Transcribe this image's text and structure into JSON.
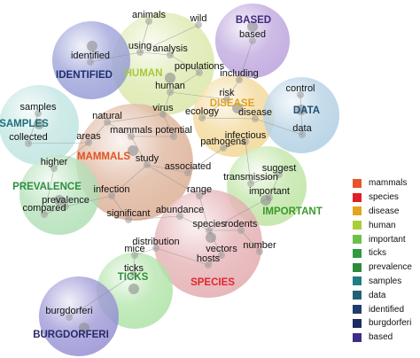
{
  "clusters": [
    {
      "id": "human",
      "label": "HUMAN",
      "color": "#a8c83a",
      "fill": "#d6e6a0"
    },
    {
      "id": "based",
      "label": "BASED",
      "color": "#3f2b7f",
      "fill": "#b59ad9"
    },
    {
      "id": "identified",
      "label": "IDENTIFIED",
      "color": "#1f2f6e",
      "fill": "#8d93d4"
    },
    {
      "id": "samples",
      "label": "SAMPLES",
      "color": "#1f6f7a",
      "fill": "#b7e2de"
    },
    {
      "id": "disease",
      "label": "DISEASE",
      "color": "#e0a21c",
      "fill": "#f1d48a"
    },
    {
      "id": "data",
      "label": "DATA",
      "color": "#1f4f75",
      "fill": "#a9cbe0"
    },
    {
      "id": "mammals",
      "label": "MAMMALS",
      "color": "#e05320",
      "fill": "#d9a88c"
    },
    {
      "id": "prevalence",
      "label": "PREVALENCE",
      "color": "#2e8f3f",
      "fill": "#a9dcae"
    },
    {
      "id": "important",
      "label": "IMPORTANT",
      "color": "#3a9a2a",
      "fill": "#b7e29a"
    },
    {
      "id": "species",
      "label": "SPECIES",
      "color": "#e2262e",
      "fill": "#e0a4a8"
    },
    {
      "id": "ticks",
      "label": "TICKS",
      "color": "#2e8f3a",
      "fill": "#a6e09e"
    },
    {
      "id": "burgdorferi",
      "label": "BURGDORFERI",
      "color": "#2a2a6a",
      "fill": "#8d86cf"
    }
  ],
  "words": [
    {
      "id": "animals",
      "text": "animals"
    },
    {
      "id": "wild",
      "text": "wild"
    },
    {
      "id": "using",
      "text": "using"
    },
    {
      "id": "analysis",
      "text": "analysis"
    },
    {
      "id": "populations",
      "text": "populations"
    },
    {
      "id": "including",
      "text": "including"
    },
    {
      "id": "based_w",
      "text": "based"
    },
    {
      "id": "identified_w",
      "text": "identified"
    },
    {
      "id": "human_w",
      "text": "human"
    },
    {
      "id": "risk",
      "text": "risk"
    },
    {
      "id": "virus",
      "text": "virus"
    },
    {
      "id": "ecology",
      "text": "ecology"
    },
    {
      "id": "disease_w",
      "text": "disease"
    },
    {
      "id": "control",
      "text": "control"
    },
    {
      "id": "data_w",
      "text": "data"
    },
    {
      "id": "samples_w",
      "text": "samples"
    },
    {
      "id": "natural",
      "text": "natural"
    },
    {
      "id": "mammals_w",
      "text": "mammals"
    },
    {
      "id": "potential",
      "text": "potential"
    },
    {
      "id": "infectious",
      "text": "infectious"
    },
    {
      "id": "pathogens",
      "text": "pathogens"
    },
    {
      "id": "collected",
      "text": "collected"
    },
    {
      "id": "areas",
      "text": "areas"
    },
    {
      "id": "higher",
      "text": "higher"
    },
    {
      "id": "study",
      "text": "study"
    },
    {
      "id": "associated",
      "text": "associated"
    },
    {
      "id": "suggest",
      "text": "suggest"
    },
    {
      "id": "transmission",
      "text": "transmission"
    },
    {
      "id": "important_w",
      "text": "important"
    },
    {
      "id": "infection",
      "text": "infection"
    },
    {
      "id": "range",
      "text": "range"
    },
    {
      "id": "prevalence_w",
      "text": "prevalence"
    },
    {
      "id": "compared",
      "text": "compared"
    },
    {
      "id": "significant",
      "text": "significant"
    },
    {
      "id": "abundance",
      "text": "abundance"
    },
    {
      "id": "species_w",
      "text": "species"
    },
    {
      "id": "rodents",
      "text": "rodents"
    },
    {
      "id": "distribution",
      "text": "distribution"
    },
    {
      "id": "number",
      "text": "number"
    },
    {
      "id": "mice",
      "text": "mice"
    },
    {
      "id": "vectors",
      "text": "vectors"
    },
    {
      "id": "hosts",
      "text": "hosts"
    },
    {
      "id": "ticks_w",
      "text": "ticks"
    },
    {
      "id": "burgdorferi_w",
      "text": "burgdorferi"
    }
  ],
  "legend": [
    {
      "label": "mammals",
      "color": "#e8542a"
    },
    {
      "label": "species",
      "color": "#e11f26"
    },
    {
      "label": "disease",
      "color": "#e2a51f"
    },
    {
      "label": "human",
      "color": "#aacd3a"
    },
    {
      "label": "important",
      "color": "#6cc04a"
    },
    {
      "label": "ticks",
      "color": "#2f9a3f"
    },
    {
      "label": "prevalence",
      "color": "#2b8b3c"
    },
    {
      "label": "samples",
      "color": "#1f7d84"
    },
    {
      "label": "data",
      "color": "#245e78"
    },
    {
      "label": "identified",
      "color": "#1f3c6d"
    },
    {
      "label": "burgdorferi",
      "color": "#1c2b63"
    },
    {
      "label": "based",
      "color": "#3e2d84"
    }
  ]
}
